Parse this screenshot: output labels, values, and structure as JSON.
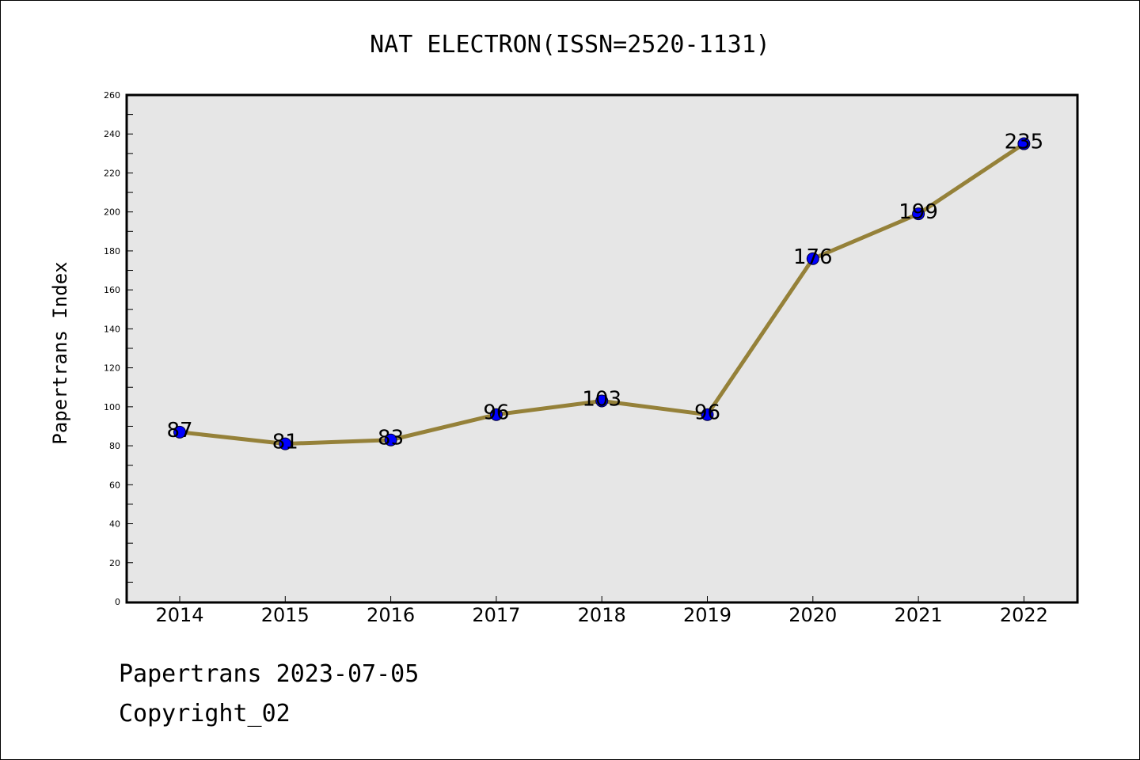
{
  "chart_data": {
    "type": "line",
    "title": "NAT ELECTRON(ISSN=2520-1131)",
    "xlabel": "",
    "ylabel": "Papertrans Index",
    "categories": [
      "2014",
      "2015",
      "2016",
      "2017",
      "2018",
      "2019",
      "2020",
      "2021",
      "2022"
    ],
    "series": [
      {
        "values": [
          87,
          81,
          83,
          96,
          103,
          96,
          176,
          199,
          235
        ]
      }
    ],
    "data_labels": [
      "87",
      "81",
      "83",
      "96",
      "103",
      "96",
      "176",
      "199",
      "235"
    ],
    "ylim": [
      0,
      260
    ],
    "yticks": [
      0,
      20,
      40,
      60,
      80,
      100,
      120,
      140,
      160,
      180,
      200,
      220,
      240,
      260
    ],
    "grid": false,
    "colors": {
      "line": "#958139",
      "marker": "#0000ff",
      "plot_background": "#e6e6e6"
    }
  },
  "footer": {
    "date_text": "Papertrans 2023-07-05",
    "copyright_text": "Copyright_02"
  }
}
